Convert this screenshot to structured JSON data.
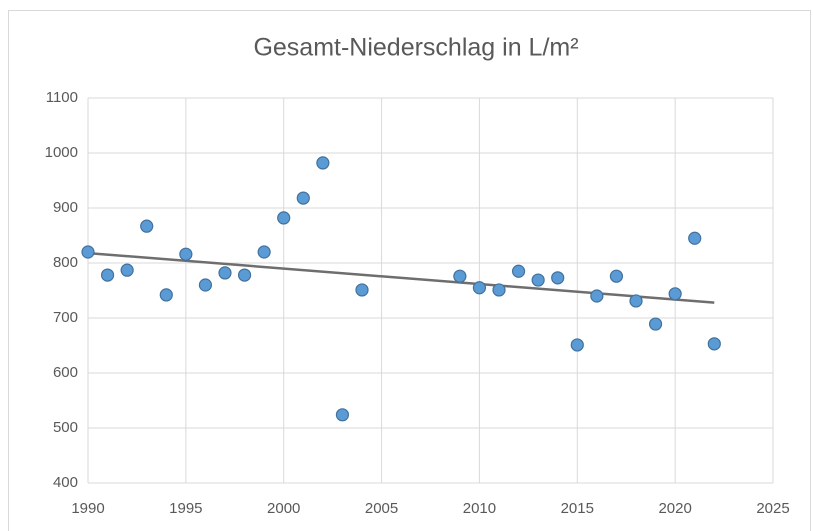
{
  "chart_data": {
    "type": "scatter",
    "title": "Gesamt-Niederschlag  in L/m²",
    "x": [
      1990,
      1991,
      1992,
      1993,
      1994,
      1995,
      1996,
      1997,
      1998,
      1999,
      2000,
      2001,
      2002,
      2003,
      2004,
      2009,
      2010,
      2011,
      2012,
      2013,
      2014,
      2015,
      2016,
      2017,
      2018,
      2019,
      2020,
      2021,
      2022
    ],
    "values": [
      820,
      778,
      787,
      867,
      742,
      816,
      760,
      782,
      778,
      820,
      882,
      918,
      982,
      524,
      751,
      776,
      755,
      751,
      785,
      769,
      773,
      651,
      740,
      776,
      731,
      689,
      744,
      845,
      653
    ],
    "color": "#5b9bd5",
    "trendline": {
      "x": [
        1990,
        2022
      ],
      "values": [
        818,
        728
      ],
      "color": "#6e6e6e"
    },
    "xlim": [
      1990,
      2025
    ],
    "xticks": [
      1990,
      1995,
      2000,
      2005,
      2010,
      2015,
      2020,
      2025
    ],
    "ylim": [
      400,
      1100
    ],
    "yticks": [
      400,
      500,
      600,
      700,
      800,
      900,
      1000,
      1100
    ],
    "grid": true
  }
}
